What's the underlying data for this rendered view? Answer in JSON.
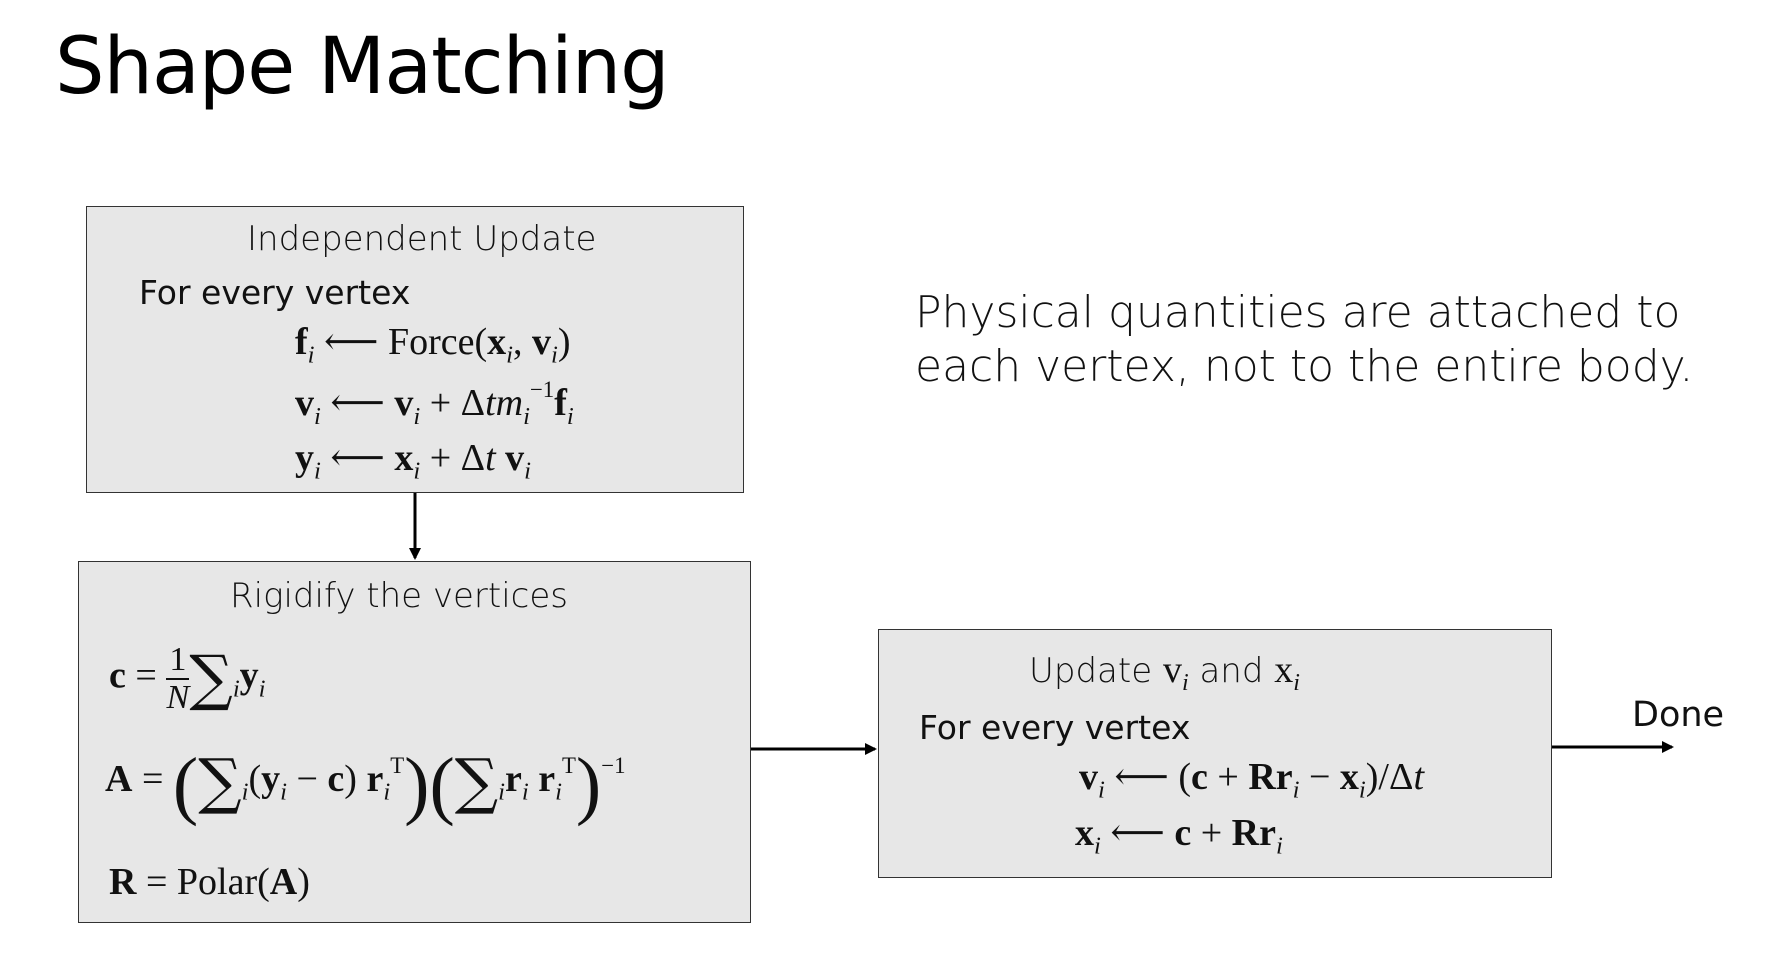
{
  "title": "Shape Matching",
  "box1": {
    "heading": "Independent Update",
    "sub": "For every vertex"
  },
  "box2": {
    "heading": "Rigidify the vertices"
  },
  "box3": {
    "heading_prefix": "Update",
    "heading_v": "v",
    "heading_and": "and",
    "heading_x": "x",
    "sub": "For every vertex"
  },
  "note": "Physical quantities are attached to each vertex, not to the entire body.",
  "done_label": "Done"
}
